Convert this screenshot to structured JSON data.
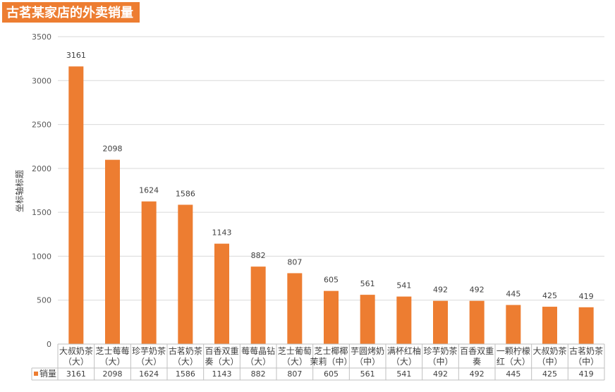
{
  "chart_data": {
    "type": "bar",
    "title": "古茗某家店的外卖销量",
    "ylabel": "坐标轴标题",
    "ylim": [
      0,
      3500
    ],
    "yticks": [
      0,
      500,
      1000,
      1500,
      2000,
      2500,
      3000,
      3500
    ],
    "grid": true,
    "legend": "data-table",
    "categories": [
      [
        "大叔奶茶",
        "（大）"
      ],
      [
        "芝士莓莓",
        "（大）"
      ],
      [
        "珍芋奶茶",
        "（大）"
      ],
      [
        "古茗奶茶",
        "（大）"
      ],
      [
        "百香双重",
        "奏（大）"
      ],
      [
        "莓莓晶钻",
        "（大）"
      ],
      [
        "芝士葡萄",
        "（大）"
      ],
      [
        "芝士椰椰",
        "茉莉（中）"
      ],
      [
        "芋圆烤奶",
        "（中）"
      ],
      [
        "满杯红柚",
        "（大）"
      ],
      [
        "珍芋奶茶",
        "（中）"
      ],
      [
        "百香双重",
        "奏"
      ],
      [
        "一颗柠檬",
        "红（大）"
      ],
      [
        "大叔奶茶",
        "（中）"
      ],
      [
        "古茗奶茶",
        "（中）"
      ]
    ],
    "series": [
      {
        "name": "销量",
        "color": "#ED7D31",
        "values": [
          3161,
          2098,
          1624,
          1586,
          1143,
          882,
          807,
          605,
          561,
          541,
          492,
          492,
          445,
          425,
          419
        ]
      }
    ]
  }
}
